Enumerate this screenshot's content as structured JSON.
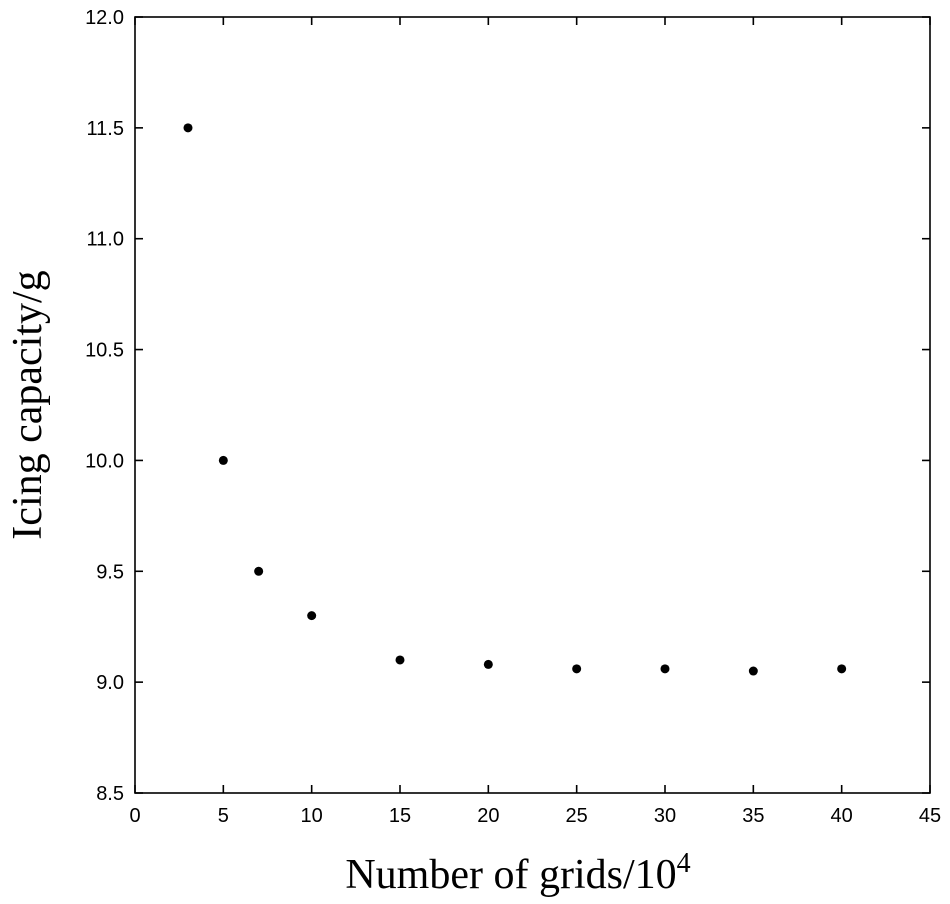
{
  "chart_data": {
    "type": "scatter",
    "xlabel": "Number of grids/10",
    "xlabel_superscript": "4",
    "ylabel": "Icing capacity/g",
    "xlim": [
      0,
      45
    ],
    "ylim": [
      8.5,
      12.0
    ],
    "xticks": [
      0,
      5,
      10,
      15,
      20,
      25,
      30,
      35,
      40,
      45
    ],
    "xtick_labels": [
      "0",
      "5",
      "10",
      "15",
      "20",
      "25",
      "30",
      "35",
      "40",
      "45"
    ],
    "yticks": [
      8.5,
      9.0,
      9.5,
      10.0,
      10.5,
      11.0,
      11.5,
      12.0
    ],
    "ytick_labels": [
      "8.5",
      "9.0",
      "9.5",
      "10.0",
      "10.5",
      "11.0",
      "11.5",
      "12.0"
    ],
    "grid": false,
    "marker_color": "#000000",
    "series": [
      {
        "x": [
          3,
          5,
          7,
          10,
          15,
          20,
          25,
          30,
          35,
          40
        ],
        "y": [
          11.5,
          10.0,
          9.5,
          9.3,
          9.1,
          9.08,
          9.06,
          9.06,
          9.05,
          9.06
        ]
      }
    ]
  }
}
